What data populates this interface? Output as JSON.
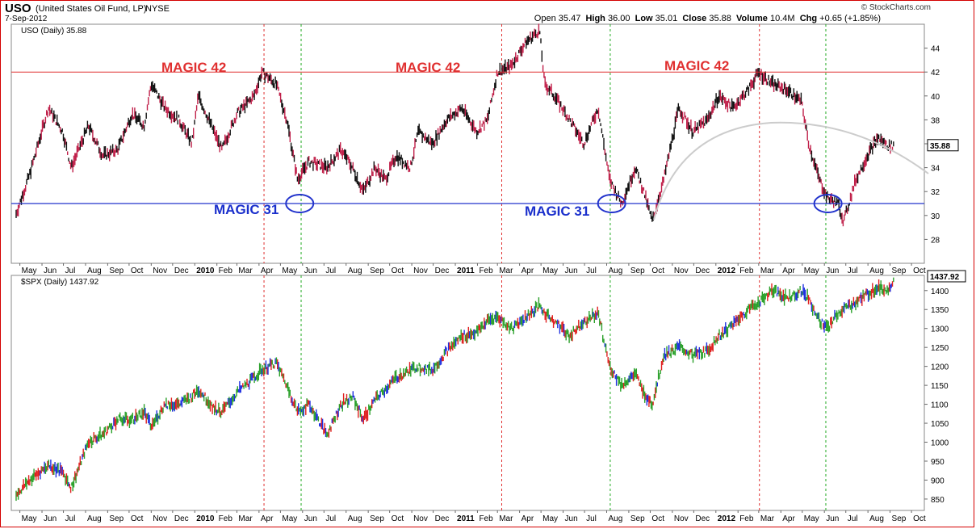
{
  "header": {
    "ticker": "USO",
    "name": "(United States Oil Fund, LP)",
    "exchange": "NYSE",
    "date": "7-Sep-2012",
    "open_label": "Open",
    "open": "35.47",
    "high_label": "High",
    "high": "36.00",
    "low_label": "Low",
    "low": "35.01",
    "close_label": "Close",
    "close": "35.88",
    "volume_label": "Volume",
    "volume": "10.4M",
    "chg_label": "Chg",
    "chg": "+0.65 (+1.85%)",
    "brand": "© StockCharts.com"
  },
  "chart_data": [
    {
      "type": "line",
      "title": "USO (Daily) 35.88",
      "last_value_tag": "35.88",
      "ylim": [
        26,
        46
      ],
      "y_ticks": [
        28,
        30,
        32,
        34,
        36,
        38,
        40,
        42,
        44
      ],
      "x_ticks": [
        "May",
        "Jun",
        "Jul",
        "Aug",
        "Sep",
        "Oct",
        "Nov",
        "Dec",
        "2010",
        "Feb",
        "Mar",
        "Apr",
        "May",
        "Jun",
        "Jul",
        "Aug",
        "Sep",
        "Oct",
        "Nov",
        "Dec",
        "2011",
        "Feb",
        "Mar",
        "Apr",
        "May",
        "Jun",
        "Jul",
        "Aug",
        "Sep",
        "Oct",
        "Nov",
        "Dec",
        "2012",
        "Feb",
        "Mar",
        "Apr",
        "May",
        "Jun",
        "Jul",
        "Aug",
        "Sep",
        "Oct"
      ],
      "x_range": [
        "2009-05",
        "2012-10"
      ],
      "series": [
        {
          "color": "#000000",
          "x": [
            "2009-04-25",
            "2009-05-15",
            "2009-06-10",
            "2009-06-30",
            "2009-07-12",
            "2009-08-05",
            "2009-08-25",
            "2009-09-15",
            "2009-10-05",
            "2009-10-22",
            "2009-11-01",
            "2009-11-20",
            "2009-12-10",
            "2009-12-28",
            "2010-01-06",
            "2010-01-28",
            "2010-02-08",
            "2010-03-01",
            "2010-03-25",
            "2010-04-05",
            "2010-04-25",
            "2010-05-10",
            "2010-05-25",
            "2010-06-10",
            "2010-07-05",
            "2010-07-25",
            "2010-08-10",
            "2010-08-25",
            "2010-09-10",
            "2010-09-25",
            "2010-10-10",
            "2010-10-30",
            "2010-11-10",
            "2010-11-30",
            "2010-12-20",
            "2011-01-10",
            "2011-01-31",
            "2011-02-15",
            "2011-03-01",
            "2011-03-20",
            "2011-04-10",
            "2011-04-29",
            "2011-05-06",
            "2011-05-20",
            "2011-06-10",
            "2011-06-30",
            "2011-07-20",
            "2011-08-05",
            "2011-08-22",
            "2011-09-10",
            "2011-09-22",
            "2011-10-04",
            "2011-10-20",
            "2011-11-10",
            "2011-11-30",
            "2011-12-20",
            "2012-01-05",
            "2012-01-25",
            "2012-02-15",
            "2012-03-01",
            "2012-03-20",
            "2012-04-10",
            "2012-04-30",
            "2012-05-10",
            "2012-05-25",
            "2012-06-05",
            "2012-06-20",
            "2012-06-28",
            "2012-07-15",
            "2012-07-31",
            "2012-08-15",
            "2012-08-30",
            "2012-09-07"
          ],
          "y": [
            30.0,
            33.5,
            39.0,
            37.0,
            34.0,
            37.5,
            35.0,
            35.5,
            38.5,
            37.5,
            41.0,
            39.0,
            38.0,
            36.0,
            40.0,
            37.0,
            35.5,
            38.5,
            40.0,
            42.0,
            41.0,
            38.0,
            33.0,
            34.5,
            34.0,
            35.5,
            34.0,
            32.0,
            34.0,
            33.0,
            35.0,
            34.0,
            37.0,
            36.0,
            38.0,
            39.0,
            37.0,
            38.0,
            42.0,
            42.5,
            44.5,
            45.5,
            41.0,
            40.0,
            38.0,
            36.0,
            39.0,
            33.0,
            31.0,
            34.0,
            32.0,
            29.5,
            33.0,
            39.0,
            37.0,
            38.0,
            40.0,
            39.0,
            40.5,
            42.0,
            41.0,
            40.5,
            39.5,
            36.0,
            33.0,
            31.5,
            31.0,
            29.5,
            33.0,
            35.0,
            36.5,
            35.8,
            35.88
          ]
        }
      ],
      "annotations": [
        "MAGIC 42",
        "MAGIC 42",
        "MAGIC 42",
        "MAGIC 31",
        "MAGIC 31"
      ],
      "levels": [
        42,
        31
      ],
      "level_colors": [
        "#e03030",
        "#2233cc"
      ]
    },
    {
      "type": "line",
      "title": "$SPX (Daily) 1437.92",
      "last_value_tag": "1437.92",
      "ylim": [
        820,
        1440
      ],
      "y_ticks": [
        850,
        900,
        950,
        1000,
        1050,
        1100,
        1150,
        1200,
        1250,
        1300,
        1350,
        1400
      ],
      "x_ticks": [
        "May",
        "Jun",
        "Jul",
        "Aug",
        "Sep",
        "Oct",
        "Nov",
        "Dec",
        "2010",
        "Feb",
        "Mar",
        "Apr",
        "May",
        "Jun",
        "Jul",
        "Aug",
        "Sep",
        "Oct",
        "Nov",
        "Dec",
        "2011",
        "Feb",
        "Mar",
        "Apr",
        "May",
        "Jun",
        "Jul",
        "Aug",
        "Sep",
        "Oct",
        "Nov",
        "Dec",
        "2012",
        "Feb",
        "Mar",
        "Apr",
        "May",
        "Jun",
        "Jul",
        "Aug",
        "Sep",
        "Oct"
      ],
      "series": [
        {
          "colors": [
            "#2aa02a",
            "#e02020",
            "#2030e0"
          ],
          "x": [
            "2009-04-25",
            "2009-05-15",
            "2009-06-10",
            "2009-06-30",
            "2009-07-12",
            "2009-08-05",
            "2009-08-25",
            "2009-09-15",
            "2009-10-05",
            "2009-10-22",
            "2009-11-01",
            "2009-11-20",
            "2009-12-10",
            "2009-12-28",
            "2010-01-06",
            "2010-01-28",
            "2010-02-08",
            "2010-03-01",
            "2010-03-25",
            "2010-04-05",
            "2010-04-25",
            "2010-05-10",
            "2010-05-25",
            "2010-06-10",
            "2010-07-05",
            "2010-07-25",
            "2010-08-10",
            "2010-08-25",
            "2010-09-10",
            "2010-09-25",
            "2010-10-10",
            "2010-10-30",
            "2010-11-10",
            "2010-11-30",
            "2010-12-20",
            "2011-01-10",
            "2011-01-31",
            "2011-02-15",
            "2011-03-01",
            "2011-03-20",
            "2011-04-10",
            "2011-04-29",
            "2011-05-06",
            "2011-05-20",
            "2011-06-10",
            "2011-06-30",
            "2011-07-20",
            "2011-08-05",
            "2011-08-22",
            "2011-09-10",
            "2011-09-22",
            "2011-10-04",
            "2011-10-20",
            "2011-11-10",
            "2011-11-30",
            "2011-12-20",
            "2012-01-05",
            "2012-01-25",
            "2012-02-15",
            "2012-03-01",
            "2012-03-20",
            "2012-04-10",
            "2012-04-30",
            "2012-05-10",
            "2012-05-25",
            "2012-06-05",
            "2012-06-20",
            "2012-06-28",
            "2012-07-15",
            "2012-07-31",
            "2012-08-15",
            "2012-08-30",
            "2012-09-07"
          ],
          "y": [
            860,
            900,
            940,
            920,
            880,
            1000,
            1020,
            1060,
            1060,
            1080,
            1040,
            1100,
            1100,
            1120,
            1140,
            1090,
            1080,
            1130,
            1170,
            1190,
            1210,
            1150,
            1080,
            1100,
            1020,
            1100,
            1120,
            1060,
            1110,
            1140,
            1170,
            1190,
            1200,
            1190,
            1240,
            1280,
            1290,
            1320,
            1330,
            1300,
            1330,
            1360,
            1340,
            1320,
            1280,
            1320,
            1340,
            1200,
            1150,
            1180,
            1130,
            1100,
            1230,
            1250,
            1230,
            1240,
            1280,
            1310,
            1350,
            1370,
            1400,
            1380,
            1400,
            1380,
            1320,
            1300,
            1340,
            1350,
            1370,
            1390,
            1410,
            1400,
            1437.92
          ]
        }
      ]
    }
  ]
}
